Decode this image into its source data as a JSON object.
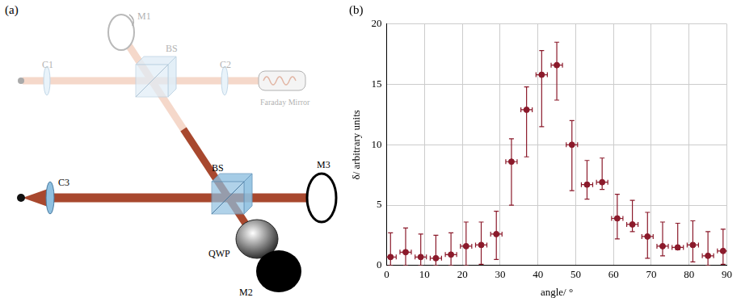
{
  "panel_labels": [
    "(a)",
    "(b)"
  ],
  "diagram": {
    "components": [
      {
        "label": "M1"
      },
      {
        "label": "BS"
      },
      {
        "label": "C1"
      },
      {
        "label": "C2"
      },
      {
        "label": "Faraday Mirror"
      },
      {
        "label": "C3"
      },
      {
        "label": "BS"
      },
      {
        "label": "M3"
      },
      {
        "label": "QWP"
      },
      {
        "label": "M2"
      }
    ]
  },
  "chart_data": {
    "type": "scatter",
    "x_label": "angle/ °",
    "y_label": "δ/ arbitrary units",
    "x": [
      1,
      5,
      9,
      13,
      17,
      21,
      25,
      29,
      33,
      37,
      41,
      45,
      49,
      53,
      57,
      61,
      65,
      69,
      73,
      77,
      81,
      85,
      89
    ],
    "values": [
      0.7,
      1.1,
      0.7,
      0.6,
      0.9,
      1.6,
      1.7,
      2.6,
      8.6,
      12.9,
      15.8,
      16.6,
      10.0,
      6.7,
      6.9,
      3.9,
      3.4,
      2.4,
      1.6,
      1.5,
      1.7,
      0.8,
      1.2
    ],
    "yerr_minus": [
      0.7,
      1.1,
      0.7,
      0.6,
      0.9,
      1.6,
      1.6,
      2.1,
      3.6,
      3.9,
      4.3,
      2.9,
      3.8,
      1.2,
      0.6,
      1.7,
      0.6,
      1.8,
      0.8,
      0.2,
      1.4,
      0.8,
      1.1
    ],
    "yerr_plus": [
      2.0,
      2.0,
      1.9,
      1.9,
      1.8,
      2.0,
      1.9,
      1.9,
      1.9,
      1.9,
      2.0,
      1.9,
      2.0,
      2.0,
      2.0,
      2.0,
      2.0,
      2.0,
      2.0,
      2.0,
      2.0,
      2.0,
      1.8
    ],
    "xerr": [
      1.5,
      1.5,
      1.5,
      1.5,
      1.5,
      1.5,
      1.5,
      1.5,
      1.5,
      1.5,
      1.5,
      1.5,
      1.5,
      1.5,
      1.5,
      1.5,
      1.5,
      1.5,
      1.5,
      1.5,
      1.5,
      1.5,
      1.5
    ],
    "color": "#8b1a2b",
    "marker": "circle",
    "xlim": [
      0,
      90
    ],
    "xticks": [
      0,
      10,
      20,
      30,
      40,
      50,
      60,
      70,
      80,
      90
    ],
    "ylim": [
      0,
      20
    ],
    "yticks": [
      0,
      5,
      10,
      15,
      20
    ],
    "grid": true
  }
}
